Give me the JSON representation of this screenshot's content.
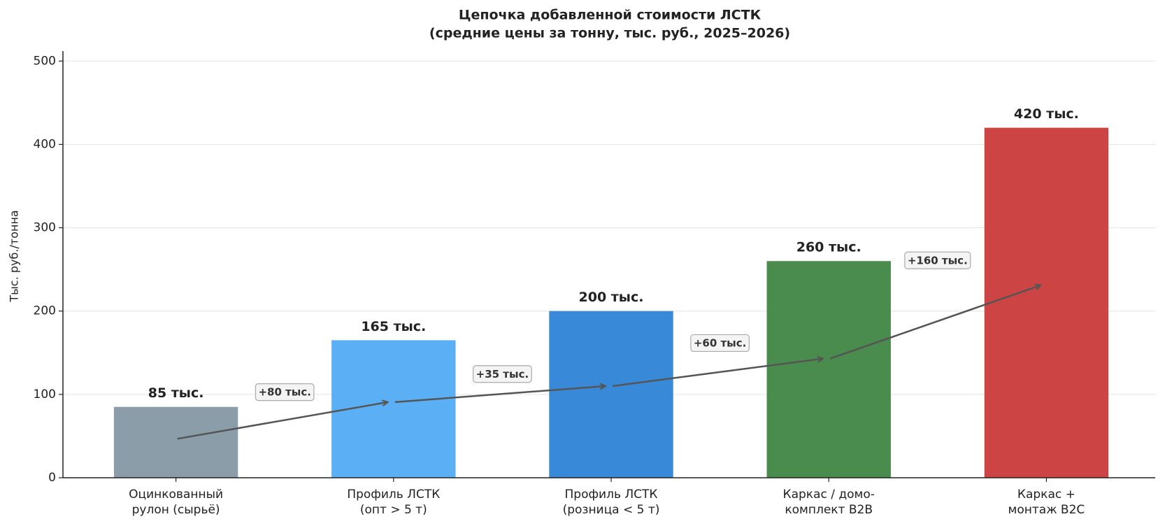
{
  "chart_data": {
    "type": "bar",
    "title": "Цепочка добавленной стоимости ЛСТК",
    "subtitle": "(средние цены за тонну, тыс. руб., 2025–2026)",
    "y_label": "Тыс. руб./тонна",
    "categories": [
      "Оцинкованный\nрулон (сырьё)",
      "Профиль ЛСТК\n(опт > 5 т)",
      "Профиль ЛСТК\n(розница < 5 т)",
      "Каркас / домо-\nкомплект B2B",
      "Каркас +\nмонтаж B2C"
    ],
    "values": [
      85,
      165,
      200,
      260,
      420
    ],
    "value_labels": [
      "85 тыс.",
      "165 тыс.",
      "200 тыс.",
      "260 тыс.",
      "420 тыс."
    ],
    "colors": [
      "#8a9da8",
      "#5aaff5",
      "#3889d8",
      "#4a8c4e",
      "#cc4444"
    ],
    "annotations": [
      "+80 тыс.",
      "+35 тыс.",
      "+60 тыс.",
      "+160 тыс."
    ],
    "ylim": [
      0,
      512
    ],
    "yticks": [
      0,
      100,
      200,
      300,
      400,
      500
    ],
    "grid": true
  }
}
